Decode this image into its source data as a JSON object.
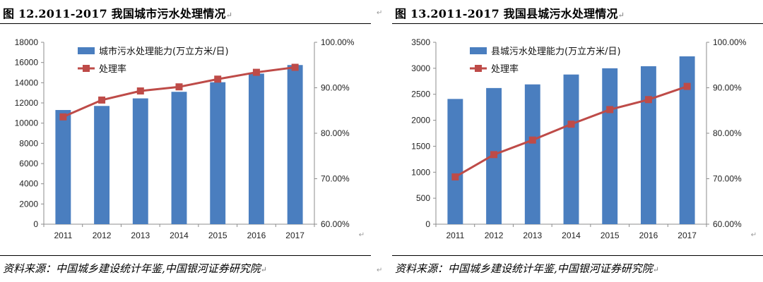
{
  "chart_data": [
    {
      "type": "bar",
      "title": "图 12.2011-2017 我国城市污水处理情况",
      "source": "资料来源：中国城乡建设统计年鉴,中国银河证券研究院",
      "categories": [
        "2011",
        "2012",
        "2013",
        "2014",
        "2015",
        "2016",
        "2017"
      ],
      "series": [
        {
          "name": "城市污水处理能力(万立方米/日)",
          "type": "bar",
          "axis": "left",
          "values": [
            11300,
            11700,
            12450,
            13100,
            14050,
            14900,
            15750
          ],
          "color": "#4a7ebf"
        },
        {
          "name": "处理率",
          "type": "line",
          "axis": "right",
          "values": [
            83.6,
            87.3,
            89.3,
            90.2,
            91.9,
            93.4,
            94.5
          ],
          "color": "#be4b48"
        }
      ],
      "y_left": {
        "min": 0,
        "max": 18000,
        "ticks": [
          "0",
          "2000",
          "4000",
          "6000",
          "8000",
          "10000",
          "12000",
          "14000",
          "16000",
          "18000"
        ]
      },
      "y_right": {
        "min": 60,
        "max": 100,
        "ticks": [
          "60.00%",
          "70.00%",
          "80.00%",
          "90.00%",
          "100.00%"
        ]
      },
      "grid": false,
      "legend_position": "top-left"
    },
    {
      "type": "bar",
      "title": "图 13.2011-2017 我国县城污水处理情况",
      "source": "资料来源：中国城乡建设统计年鉴,中国银河证券研究院",
      "categories": [
        "2011",
        "2012",
        "2013",
        "2014",
        "2015",
        "2016",
        "2017"
      ],
      "series": [
        {
          "name": "县城污水处理能力(万立方米/日)",
          "type": "bar",
          "axis": "left",
          "values": [
            2410,
            2620,
            2690,
            2880,
            3000,
            3040,
            3230
          ],
          "color": "#4a7ebf"
        },
        {
          "name": "处理率",
          "type": "line",
          "axis": "right",
          "values": [
            70.4,
            75.3,
            78.5,
            82.0,
            85.2,
            87.4,
            90.3
          ],
          "color": "#be4b48"
        }
      ],
      "y_left": {
        "min": 0,
        "max": 3500,
        "ticks": [
          "0",
          "500",
          "1000",
          "1500",
          "2000",
          "2500",
          "3000",
          "3500"
        ]
      },
      "y_right": {
        "min": 60,
        "max": 100,
        "ticks": [
          "60.00%",
          "70.00%",
          "80.00%",
          "90.00%",
          "100.00%"
        ]
      },
      "grid": false,
      "legend_position": "top-left"
    }
  ]
}
